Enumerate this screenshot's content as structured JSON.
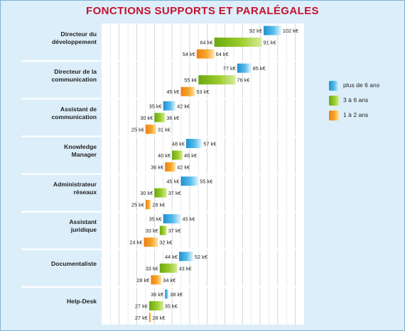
{
  "title": "Fonctions supports et paralégales",
  "colors": {
    "background": "#dceef9",
    "plot_background": "#ffffff",
    "title": "#c8102e",
    "series": [
      "#3ba9e0",
      "#8dc21f",
      "#f39a1e"
    ]
  },
  "chart_data": {
    "type": "bar",
    "orientation": "horizontal",
    "style": "floating range bars (low to high salary)",
    "unit": "k€",
    "categories": [
      "Directeur du développement",
      "Directeur de la communication",
      "Assistant de communication",
      "Knowledge Manager",
      "Administrateur réseaux",
      "Assistant juridique",
      "Documentaliste",
      "Help-Desk"
    ],
    "category_label_lines": [
      [
        "Directeur du",
        "développement"
      ],
      [
        "Directeur de la",
        "communication"
      ],
      [
        "Assistant de",
        "communication"
      ],
      [
        "Knowledge",
        "Manager"
      ],
      [
        "Administrateur",
        "réseaux"
      ],
      [
        "Assistant",
        "juridique"
      ],
      [
        "Documentaliste"
      ],
      [
        "Help-Desk"
      ]
    ],
    "series": [
      {
        "name": "plus de 6 ans",
        "low": [
          92,
          77,
          35,
          48,
          45,
          35,
          44,
          36
        ],
        "high": [
          102,
          85,
          42,
          57,
          55,
          45,
          52,
          38
        ]
      },
      {
        "name": "3 à 6 ans",
        "low": [
          64,
          55,
          30,
          40,
          30,
          33,
          33,
          27
        ],
        "high": [
          91,
          76,
          36,
          46,
          37,
          37,
          43,
          35
        ]
      },
      {
        "name": "1 à 2 ans",
        "low": [
          54,
          45,
          25,
          36,
          25,
          24,
          28,
          27
        ],
        "high": [
          64,
          53,
          31,
          42,
          28,
          32,
          34,
          28
        ]
      }
    ],
    "xlim": [
      0,
      115
    ],
    "grid": true,
    "legend_position": "right"
  }
}
